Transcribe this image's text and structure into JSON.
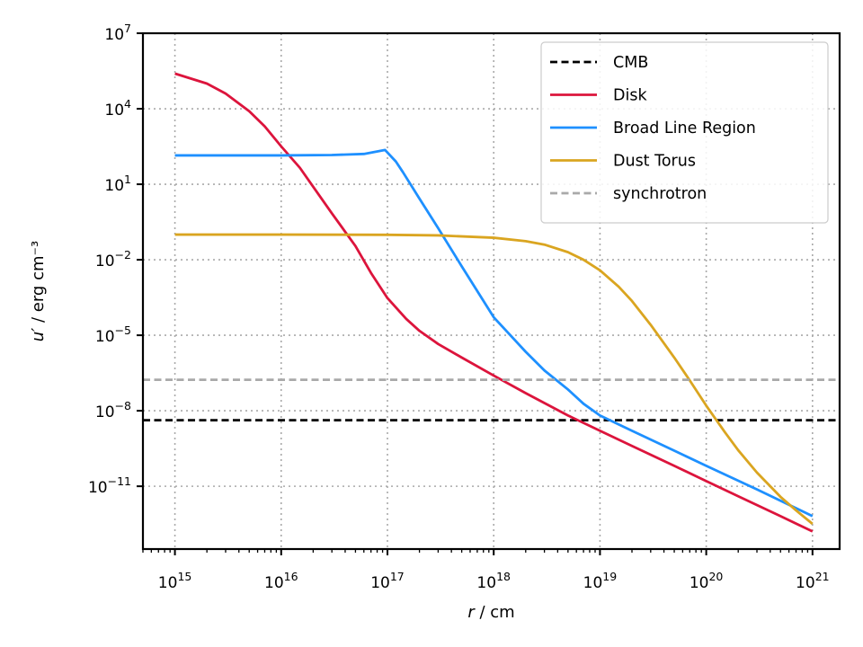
{
  "chart_data": {
    "type": "line",
    "xscale": "log",
    "yscale": "log",
    "xlabel": "r / cm",
    "ylabel": "u′ / erg cm⁻³",
    "xlim": [
      500000000000000.0,
      1.8e+21
    ],
    "ylim": [
      3.2e-14,
      10000000.0
    ],
    "grid": true,
    "legend_position": "top-right",
    "x_ticks": [
      {
        "exp": 15,
        "label": "10^15"
      },
      {
        "exp": 16,
        "label": "10^16"
      },
      {
        "exp": 17,
        "label": "10^17"
      },
      {
        "exp": 18,
        "label": "10^18"
      },
      {
        "exp": 19,
        "label": "10^19"
      },
      {
        "exp": 20,
        "label": "10^20"
      },
      {
        "exp": 21,
        "label": "10^21"
      }
    ],
    "y_ticks": [
      {
        "exp": 7,
        "label": "10^7"
      },
      {
        "exp": 4,
        "label": "10^4"
      },
      {
        "exp": 1,
        "label": "10^1"
      },
      {
        "exp": -2,
        "label": "10^-2"
      },
      {
        "exp": -5,
        "label": "10^-5"
      },
      {
        "exp": -8,
        "label": "10^-8"
      },
      {
        "exp": -11,
        "label": "10^-11"
      }
    ],
    "series": [
      {
        "name": "CMB",
        "color": "#000000",
        "style": "dashed",
        "constant": 4.2e-09
      },
      {
        "name": "Disk",
        "color": "#dc143c",
        "style": "solid",
        "x": [
          1000000000000000.0,
          2000000000000000.0,
          3000000000000000.0,
          5000000000000000.0,
          7000000000000000.0,
          1e+16,
          1.5e+16,
          2e+16,
          3e+16,
          5e+16,
          7e+16,
          1e+17,
          1.5e+17,
          2e+17,
          3e+17,
          5e+17,
          1e+18,
          2e+18,
          5e+18,
          1e+19,
          2e+19,
          5e+19,
          1e+20,
          2e+20,
          5e+20,
          1e+21
        ],
        "y": [
          250000.0,
          100000.0,
          40000.0,
          8000.0,
          2000.0,
          320.0,
          45,
          8,
          0.7,
          0.035,
          0.003,
          0.0003,
          4.5e-05,
          1.5e-05,
          4.5e-06,
          1.3e-06,
          2.5e-07,
          5e-08,
          6.5e-09,
          1.6e-09,
          4e-10,
          6.5e-11,
          1.6e-11,
          4e-12,
          6.5e-13,
          1.6e-13
        ]
      },
      {
        "name": "Broad Line Region",
        "color": "#1e90ff",
        "style": "solid",
        "x": [
          1000000000000000.0,
          1e+16,
          3e+16,
          6e+16,
          9.5e+16,
          1.2e+17,
          1.4e+17,
          2e+17,
          3e+17,
          5e+17,
          1e+18,
          2e+18,
          3e+18,
          5e+18,
          7e+18,
          1e+19,
          2e+19,
          5e+19,
          1e+20,
          3e+20,
          1e+21
        ],
        "y": [
          140,
          140,
          145,
          160,
          230,
          80,
          30,
          2.7,
          0.18,
          0.0055,
          5.2e-05,
          2.2e-06,
          4e-07,
          7e-08,
          1.9e-08,
          6.5e-09,
          1.6e-09,
          2.6e-10,
          6.5e-11,
          7.5e-12,
          6.5e-13
        ]
      },
      {
        "name": "Dust Torus",
        "color": "#daa520",
        "style": "solid",
        "x": [
          1000000000000000.0,
          1e+16,
          1e+17,
          3e+17,
          1e+18,
          2e+18,
          3e+18,
          5e+18,
          7e+18,
          1e+19,
          1.5e+19,
          2e+19,
          3e+19,
          5e+19,
          7e+19,
          1e+20,
          1.5e+20,
          2e+20,
          3e+20,
          5e+20,
          7e+20,
          1e+21
        ],
        "y": [
          0.1,
          0.1,
          0.098,
          0.093,
          0.075,
          0.055,
          0.04,
          0.02,
          0.01,
          0.0038,
          0.00085,
          0.00023,
          2.6e-05,
          1.3e-06,
          1.6e-07,
          1.6e-08,
          1.4e-09,
          2.7e-10,
          3.5e-11,
          3.8e-12,
          1.1e-12,
          3.2e-13
        ]
      },
      {
        "name": "synchrotron",
        "color": "#a9a9a9",
        "style": "dashed",
        "constant": 1.7e-07
      }
    ]
  }
}
